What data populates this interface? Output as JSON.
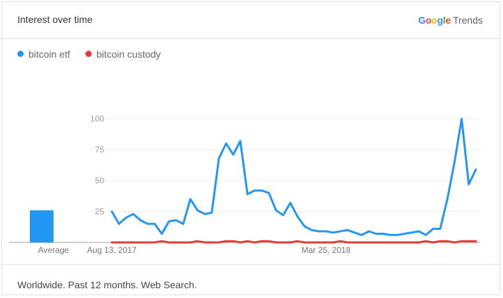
{
  "header": {
    "title": "Interest over time",
    "brand": {
      "google": [
        "G",
        "o",
        "o",
        "g",
        "l",
        "e"
      ],
      "google_colors": [
        "#4285F4",
        "#EA4335",
        "#FBBC05",
        "#4285F4",
        "#34A853",
        "#EA4335"
      ],
      "trends": "Trends"
    }
  },
  "footer": {
    "text": "Worldwide. Past 12 months. Web Search."
  },
  "chart_data": {
    "type": "line",
    "ylim": [
      0,
      100
    ],
    "yticks": [
      25,
      50,
      75,
      100
    ],
    "x_tick_labels": [
      {
        "label": "Aug 13, 2017",
        "index": 0
      },
      {
        "label": "Mar 25, 2018",
        "index": 30
      }
    ],
    "average_label": "Average",
    "series": [
      {
        "name": "bitcoin etf",
        "color": "#2196f3",
        "average": 26,
        "values": [
          25,
          15,
          20,
          23,
          18,
          15,
          15,
          7,
          17,
          18,
          15,
          35,
          26,
          23,
          24,
          68,
          80,
          71,
          82,
          39,
          42,
          42,
          40,
          26,
          22,
          32,
          21,
          13,
          10,
          9,
          9,
          8,
          9,
          10,
          8,
          6,
          9,
          7,
          7,
          6,
          6,
          7,
          8,
          9,
          6,
          11,
          11,
          35,
          65,
          100,
          47,
          59
        ]
      },
      {
        "name": "bitcoin custody",
        "color": "#e53935",
        "average": 0,
        "values": [
          0,
          0,
          0,
          0,
          0,
          0,
          0,
          1,
          0,
          0,
          0,
          0,
          1,
          0,
          0,
          0,
          1,
          1,
          0,
          1,
          0,
          1,
          1,
          0,
          0,
          0,
          1,
          0,
          0,
          0,
          0,
          0,
          1,
          0,
          0,
          0,
          0,
          0,
          0,
          0,
          0,
          0,
          0,
          0,
          1,
          0,
          1,
          1,
          0,
          1,
          1,
          1
        ]
      }
    ]
  }
}
